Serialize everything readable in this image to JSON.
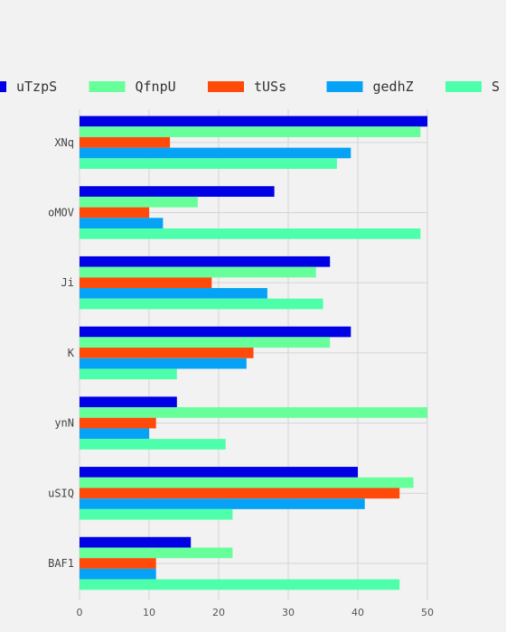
{
  "chart_data": {
    "type": "bar",
    "orientation": "horizontal",
    "categories": [
      "XNq",
      "oMOV",
      "Ji",
      "K",
      "ynN",
      "uSIQ",
      "BAF1"
    ],
    "series": [
      {
        "name": "uTzpS",
        "color": "#0000e6",
        "values": [
          50,
          28,
          36,
          39,
          14,
          40,
          16
        ]
      },
      {
        "name": "QfnpU",
        "color": "#66ff99",
        "values": [
          49,
          17,
          34,
          36,
          50,
          48,
          22
        ]
      },
      {
        "name": "tUSs",
        "color": "#ff4a0a",
        "values": [
          13,
          10,
          19,
          25,
          11,
          46,
          11
        ]
      },
      {
        "name": "gedhZ",
        "color": "#06a2f6",
        "values": [
          39,
          12,
          27,
          24,
          10,
          41,
          11
        ]
      },
      {
        "name": "S",
        "color": "#4dffaa",
        "values": [
          37,
          49,
          35,
          14,
          21,
          22,
          46
        ]
      }
    ],
    "xlim": [
      0,
      50
    ],
    "xticks": [
      0,
      10,
      20,
      30,
      40,
      50
    ],
    "grid": true,
    "legend_position": "top",
    "title": "",
    "xlabel": "",
    "ylabel": ""
  }
}
